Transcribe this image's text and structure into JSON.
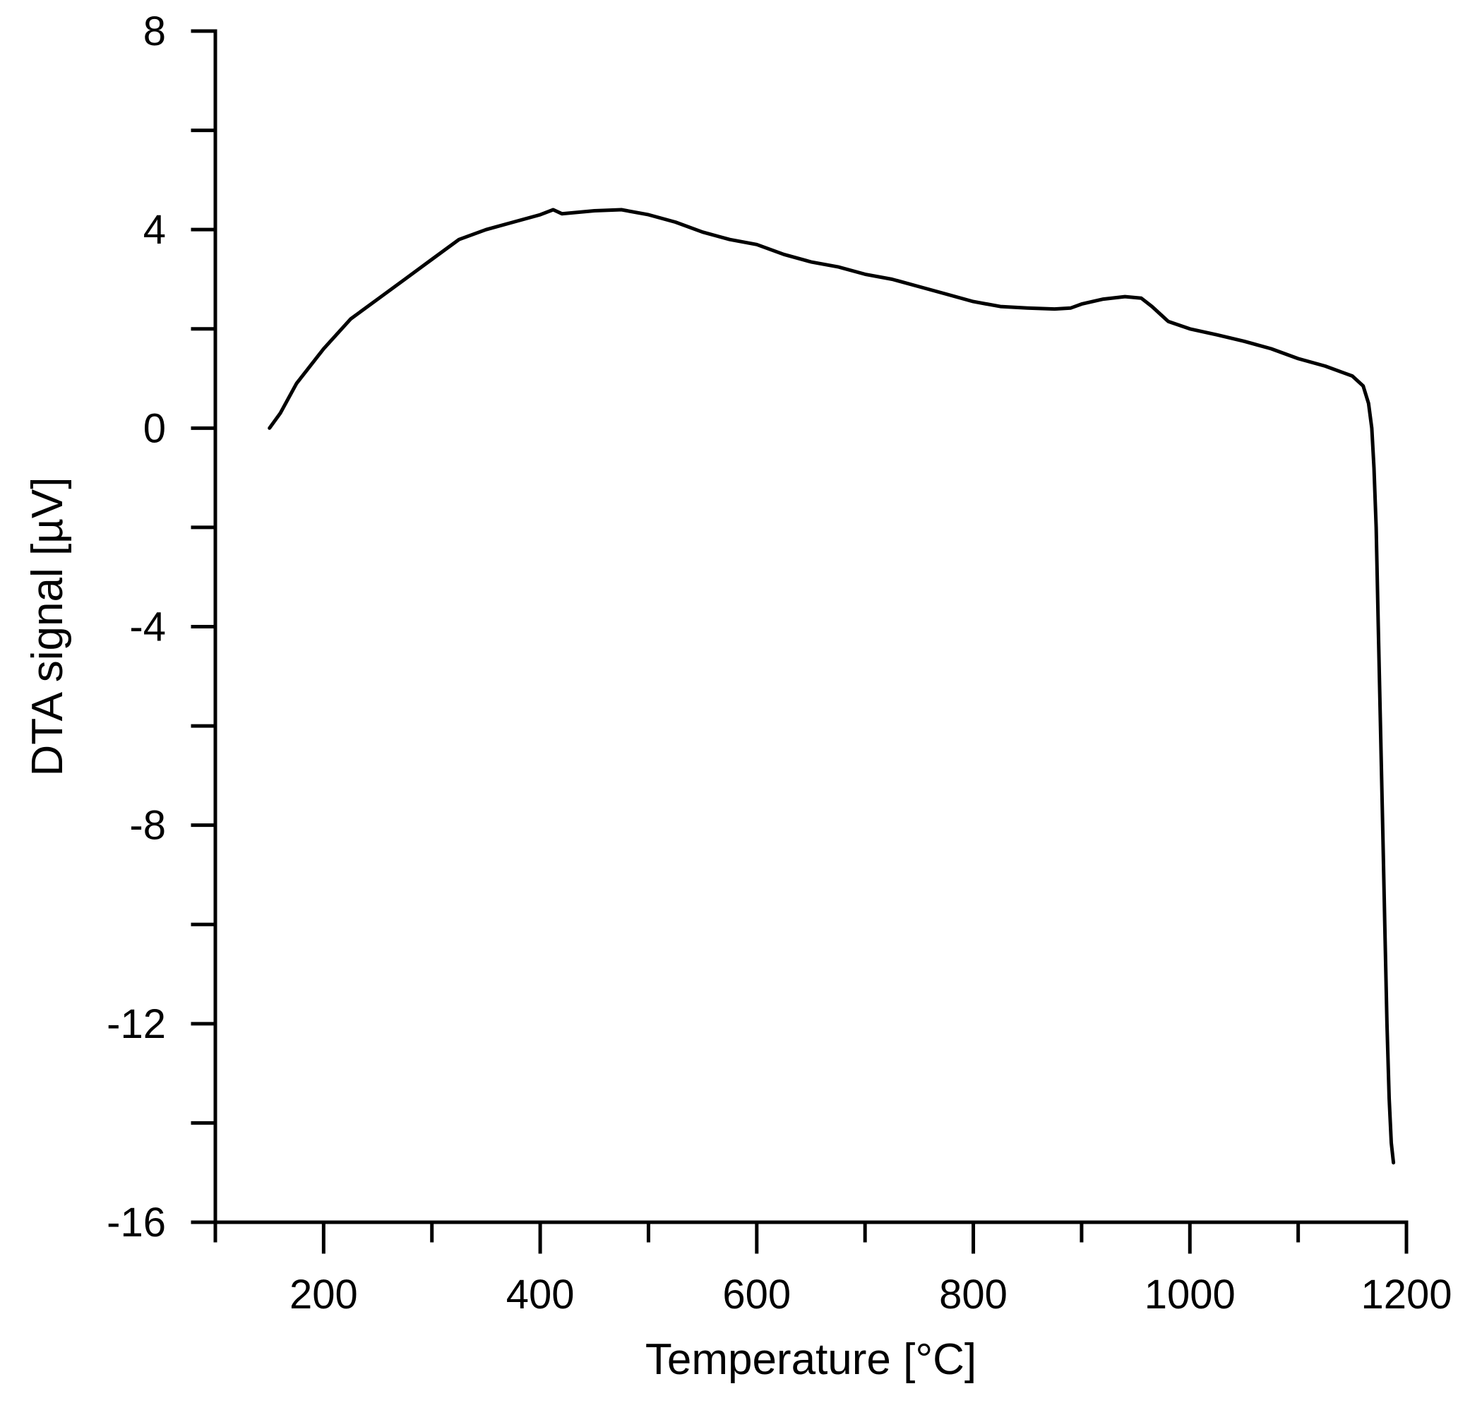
{
  "chart_data": {
    "type": "line",
    "title": "",
    "xlabel": "Temperature [°C]",
    "ylabel": "DTA signal [µV]",
    "xlim": [
      100,
      1200
    ],
    "ylim": [
      -16,
      8
    ],
    "x_major_ticks": [
      200,
      400,
      600,
      800,
      1000,
      1200
    ],
    "x_minor_ticks": [
      100,
      300,
      500,
      700,
      900,
      1100
    ],
    "y_major_ticks": [
      -16,
      -12,
      -8,
      -4,
      0,
      4,
      8
    ],
    "y_minor_ticks": [
      -14,
      -10,
      -6,
      -2,
      2,
      6
    ],
    "x_tick_labels": [
      "200",
      "400",
      "600",
      "800",
      "1000",
      "1200"
    ],
    "y_tick_labels": [
      "-16",
      "-12",
      "-8",
      "-4",
      "0",
      "4",
      "8"
    ],
    "grid": false,
    "line_color": "#000000",
    "series": [
      {
        "x": [
          150,
          160,
          175,
          200,
          225,
          250,
          275,
          300,
          325,
          350,
          375,
          400,
          412,
          420,
          450,
          475,
          500,
          525,
          550,
          575,
          600,
          625,
          650,
          675,
          700,
          725,
          750,
          775,
          800,
          825,
          850,
          875,
          890,
          900,
          920,
          940,
          955,
          965,
          980,
          1000,
          1025,
          1050,
          1075,
          1100,
          1125,
          1150,
          1160,
          1165,
          1168,
          1170,
          1172,
          1174,
          1176,
          1178,
          1180,
          1182,
          1184,
          1186,
          1188
        ],
        "y": [
          0.0,
          0.3,
          0.9,
          1.6,
          2.2,
          2.6,
          3.0,
          3.4,
          3.8,
          4.0,
          4.15,
          4.3,
          4.4,
          4.32,
          4.38,
          4.4,
          4.3,
          4.15,
          3.95,
          3.8,
          3.7,
          3.5,
          3.35,
          3.25,
          3.1,
          3.0,
          2.85,
          2.7,
          2.55,
          2.45,
          2.42,
          2.4,
          2.42,
          2.5,
          2.6,
          2.65,
          2.62,
          2.45,
          2.15,
          2.0,
          1.88,
          1.75,
          1.6,
          1.4,
          1.25,
          1.05,
          0.85,
          0.5,
          0.0,
          -0.8,
          -2.0,
          -4.0,
          -6.0,
          -8.0,
          -10.0,
          -12.0,
          -13.5,
          -14.4,
          -14.8
        ]
      }
    ]
  }
}
